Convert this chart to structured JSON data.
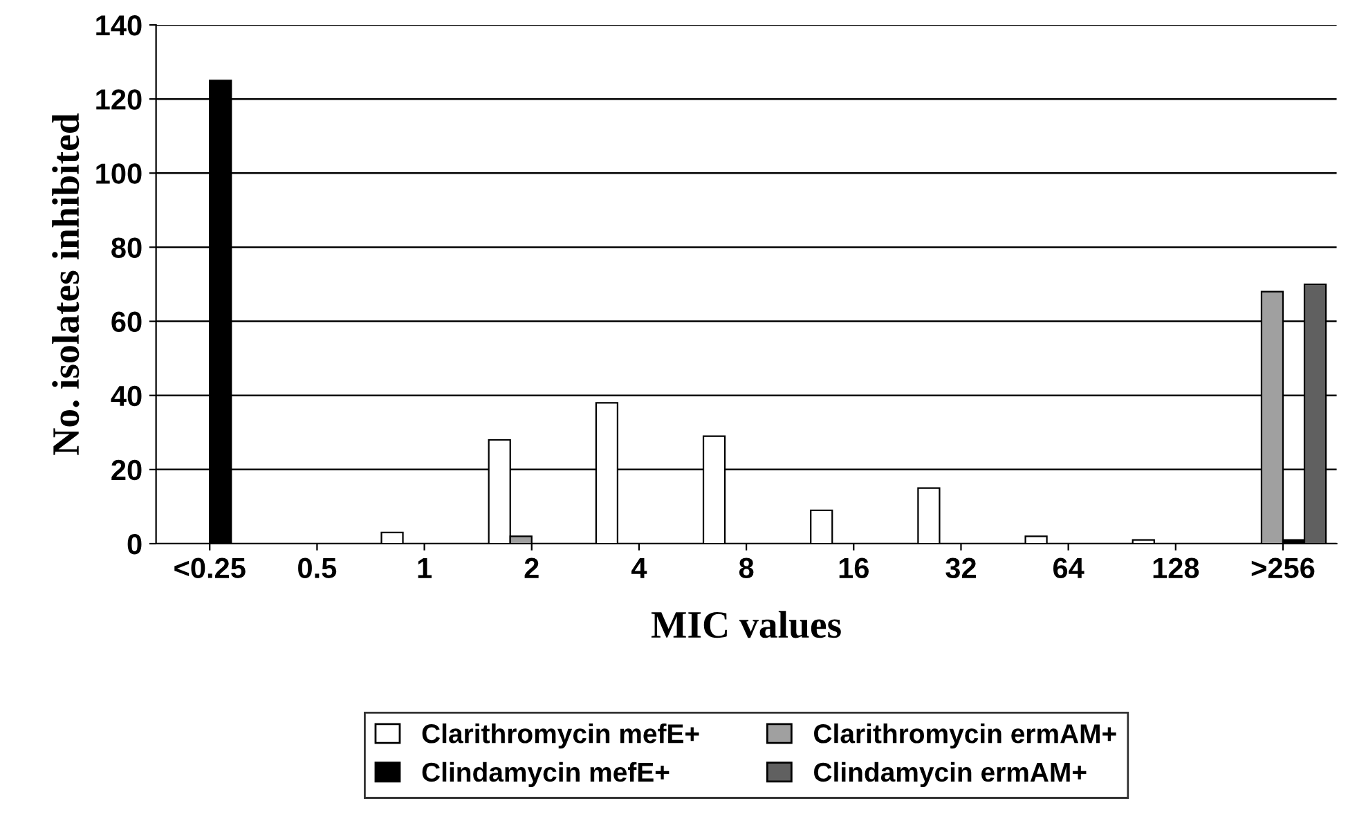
{
  "chart_data": {
    "type": "bar",
    "xlabel": "MIC values",
    "ylabel": "No. isolates inhibited",
    "categories": [
      "<0.25",
      "0.5",
      "1",
      "2",
      "4",
      "8",
      "16",
      "32",
      "64",
      "128",
      ">256"
    ],
    "series": [
      {
        "name": "Clarithromycin mefE+",
        "color": "#ffffff",
        "values": [
          0,
          0,
          3,
          28,
          38,
          29,
          9,
          15,
          2,
          1,
          0
        ]
      },
      {
        "name": "Clarithromycin ermAM+",
        "color": "#a0a0a0",
        "values": [
          0,
          0,
          0,
          2,
          0,
          0,
          0,
          0,
          0,
          0,
          68
        ]
      },
      {
        "name": "Clindamycin mefE+",
        "color": "#000000",
        "values": [
          125,
          0,
          0,
          0,
          0,
          0,
          0,
          0,
          0,
          0,
          1
        ]
      },
      {
        "name": "Clindamycin ermAM+",
        "color": "#606060",
        "values": [
          0,
          0,
          0,
          0,
          0,
          0,
          0,
          0,
          0,
          0,
          70
        ]
      }
    ],
    "ylim": [
      0,
      140
    ],
    "yticks": [
      0,
      20,
      40,
      60,
      80,
      100,
      120,
      140
    ],
    "grid": "y",
    "legend": "bottom"
  }
}
